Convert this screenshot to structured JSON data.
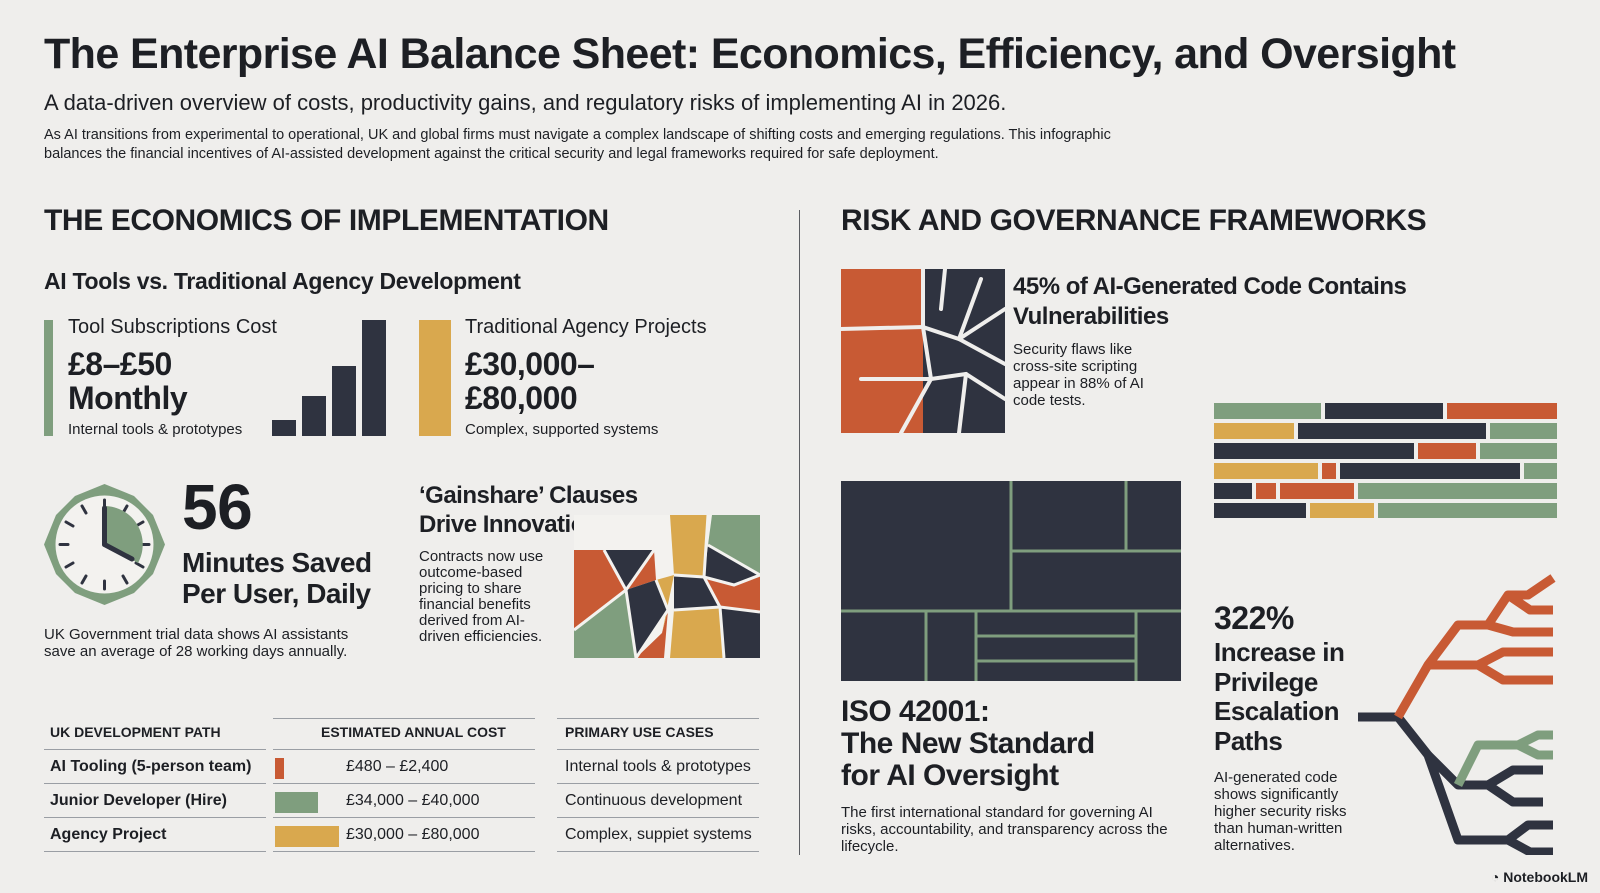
{
  "title": "The Enterprise AI Balance Sheet: Economics, Efficiency, and Oversight",
  "subtitle": "A data-driven overview of costs, productivity gains, and regulatory risks of implementing AI in 2026.",
  "intro": "As AI transitions from experimental to operational, UK and global firms must navigate a complex landscape of shifting costs and emerging regulations. This infographic balances the financial incentives of AI-assisted development against the critical security and legal frameworks required for safe deployment.",
  "colors": {
    "green": "#7f9e7e",
    "gold": "#d9a84e",
    "rust": "#c85a34",
    "navy": "#2f3340",
    "background": "#efeeec"
  },
  "economics": {
    "heading": "THE ECONOMICS OF IMPLEMENTATION",
    "subheading": "AI Tools vs. Traditional Agency Development",
    "tools": {
      "label": "Tool Subscriptions Cost",
      "value_line1": "£8–£50",
      "value_line2": "Monthly",
      "note": "Internal tools & prototypes"
    },
    "agency": {
      "label": "Traditional Agency Projects",
      "value_line1": "£30,000–",
      "value_line2": "£80,000",
      "note": "Complex, supported systems"
    },
    "minutes": {
      "value": "56",
      "line1": "Minutes Saved",
      "line2": "Per User, Daily",
      "note": "UK Government trial data shows AI assistants save an average of 28 working days annually.",
      "icon": "clock-icon"
    },
    "gainshare": {
      "title_line1": "‘Gainshare’ Clauses",
      "title_line2": "Drive Innovation",
      "body": "Contracts now use outcome-based pricing to share financial benefits derived from AI-driven efficiencies."
    }
  },
  "table": {
    "headers": [
      "UK DEVELOPMENT PATH",
      "ESTIMATED ANNUAL COST",
      "PRIMARY USE CASES"
    ],
    "rows": [
      {
        "path": "AI Tooling (5-person team)",
        "cost": "£480 – £2,400",
        "use": "Internal tools & prototypes",
        "color": "#c85a34"
      },
      {
        "path": "Junior Developer (Hire)",
        "cost": "£34,000 – £40,000",
        "use": "Continuous development",
        "color": "#7f9e7e"
      },
      {
        "path": "Agency Project",
        "cost": "£30,000 – £80,000",
        "use": "Complex, suppiet systems",
        "color": "#d9a84e"
      }
    ]
  },
  "risk": {
    "heading": "RISK AND GOVERNANCE FRAMEWORKS",
    "vuln": {
      "title_line1": "45% of AI-Generated Code Contains",
      "title_line2": "Vulnerabilities",
      "body": "Security flaws like cross-site scripting appear in 88% of AI code tests."
    },
    "iso": {
      "title_line1": "ISO 42001:",
      "title_line2": "The New Standard",
      "title_line3": "for AI Oversight",
      "body": "The first international standard for governing AI risks, accountability, and transparency across the lifecycle."
    },
    "privilege": {
      "value": "322%",
      "line1": "Increase in",
      "line2": "Privilege",
      "line3": "Escalation",
      "line4": "Paths",
      "body": "AI-generated code shows significantly higher security risks than human-written alternatives.",
      "icon": "branching-tree-icon"
    }
  },
  "brand": "NotebookLM"
}
